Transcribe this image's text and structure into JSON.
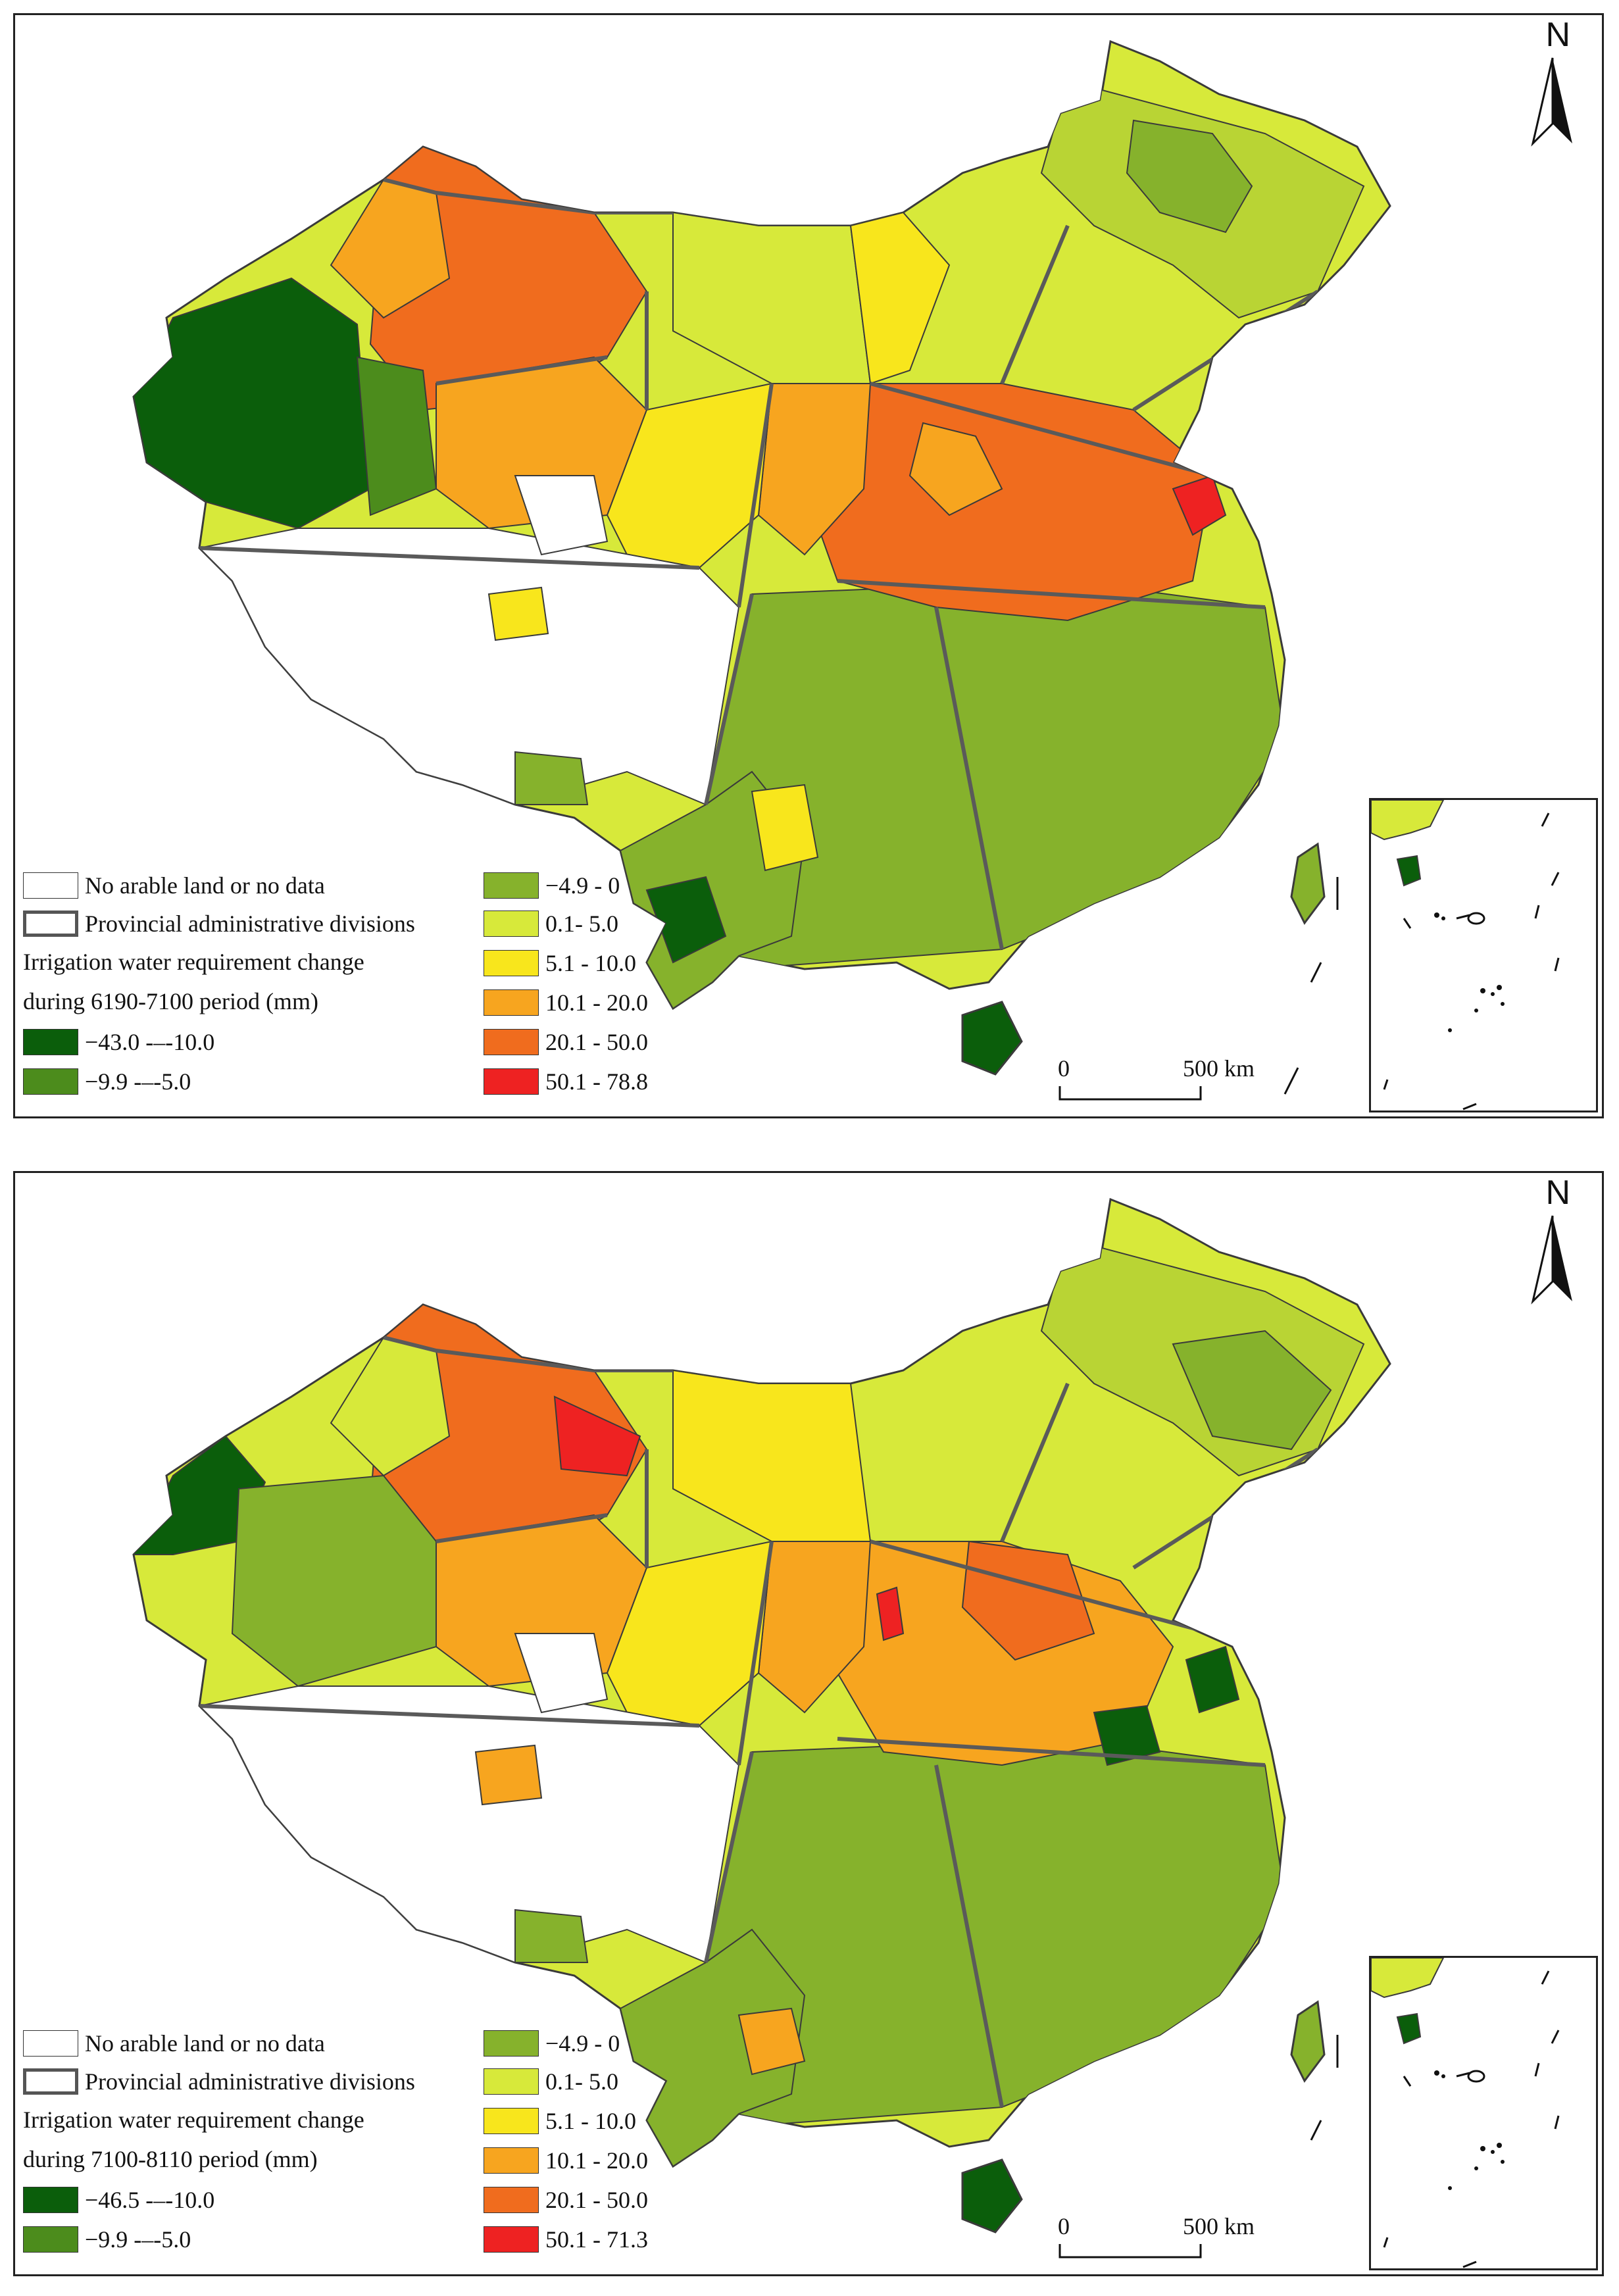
{
  "colors": {
    "no_data": "#ffffff",
    "class_1": "#0b5e0b",
    "class_2": "#4c8c1c",
    "class_3": "#86b22c",
    "class_4": "#d7e93a",
    "class_5": "#f8e61c",
    "class_6": "#f7a51f",
    "class_7": "#f06c1e",
    "class_8": "#ee2222",
    "border": "#3a3a3a",
    "province": "#5a5a5a"
  },
  "north_arrow": "north-arrow-icon",
  "north_label": "N",
  "panels": [
    {
      "legend": {
        "no_data": "No arable land or no data",
        "province": "Provincial administrative divisions",
        "title_line1": "Irrigation water requirement change",
        "title_line2": "during 6190-7100 period (mm)",
        "classes": [
          "−43.0 -–-10.0",
          "−9.9 -–-5.0",
          "−4.9 -  0",
          "0.1- 5.0",
          "5.1 - 10.0",
          "10.1 - 20.0",
          "20.1 - 50.0",
          "50.1 - 78.8"
        ]
      },
      "scale": {
        "zero": "0",
        "distance": "500 km"
      }
    },
    {
      "legend": {
        "no_data": "No arable land or no data",
        "province": "Provincial administrative divisions",
        "title_line1": "Irrigation water requirement change",
        "title_line2": "during 7100-8110 period (mm)",
        "classes": [
          "−46.5 -–-10.0",
          "−9.9 -–-5.0",
          "−4.9 -  0",
          "0.1- 5.0",
          "5.1 - 10.0",
          "10.1 - 20.0",
          "20.1 - 50.0",
          "50.1 - 71.3"
        ]
      },
      "scale": {
        "zero": "0",
        "distance": "500 km"
      }
    }
  ]
}
